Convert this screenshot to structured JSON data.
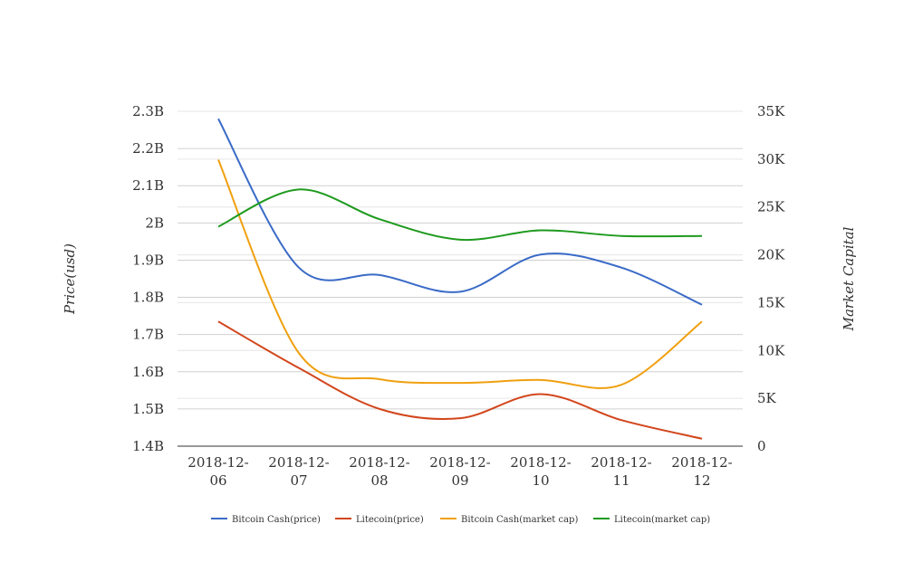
{
  "chart_data": {
    "type": "line",
    "title": "",
    "categories": [
      "2018-12-06",
      "2018-12-07",
      "2018-12-08",
      "2018-12-09",
      "2018-12-10",
      "2018-12-11",
      "2018-12-12"
    ],
    "category_labels": [
      [
        "2018-12-",
        "06"
      ],
      [
        "2018-12-",
        "07"
      ],
      [
        "2018-12-",
        "08"
      ],
      [
        "2018-12-",
        "09"
      ],
      [
        "2018-12-",
        "10"
      ],
      [
        "2018-12-",
        "11"
      ],
      [
        "2018-12-",
        "12"
      ]
    ],
    "ylabel_left": "Price(usd)",
    "ylabel_right": "Market Capital",
    "y_left": {
      "min": 1.4,
      "max": 2.3,
      "ticks": [
        1.4,
        1.5,
        1.6,
        1.7,
        1.8,
        1.9,
        2.0,
        2.1,
        2.2,
        2.3
      ],
      "tick_labels": [
        "1.4B",
        "1.5B",
        "1.6B",
        "1.7B",
        "1.8B",
        "1.9B",
        "2B",
        "2.1B",
        "2.2B",
        "2.3B"
      ]
    },
    "y_right": {
      "min": 0,
      "max": 35000,
      "ticks": [
        0,
        5000,
        10000,
        15000,
        20000,
        25000,
        30000,
        35000
      ],
      "tick_labels": [
        "0",
        "5K",
        "10K",
        "15K",
        "20K",
        "25K",
        "30K",
        "35K"
      ]
    },
    "series": [
      {
        "name": "Bitcoin Cash(price)",
        "axis": "left",
        "color": "#3a6bc7",
        "values": [
          2.28,
          1.88,
          1.86,
          1.815,
          1.915,
          1.88,
          1.78
        ]
      },
      {
        "name": "Litecoin(price)",
        "axis": "left",
        "color": "#d2461c",
        "values": [
          1.735,
          1.61,
          1.5,
          1.475,
          1.54,
          1.47,
          1.42
        ]
      },
      {
        "name": "Bitcoin Cash(market cap)",
        "axis": "left",
        "color": "#f0a010",
        "values": [
          2.17,
          1.65,
          1.58,
          1.57,
          1.578,
          1.565,
          1.735
        ]
      },
      {
        "name": "Litecoin(market cap)",
        "axis": "left",
        "color": "#1e9a1e",
        "values": [
          1.99,
          2.09,
          2.01,
          1.955,
          1.98,
          1.965,
          1.965
        ]
      }
    ],
    "legend_position": "bottom",
    "grid": true
  }
}
